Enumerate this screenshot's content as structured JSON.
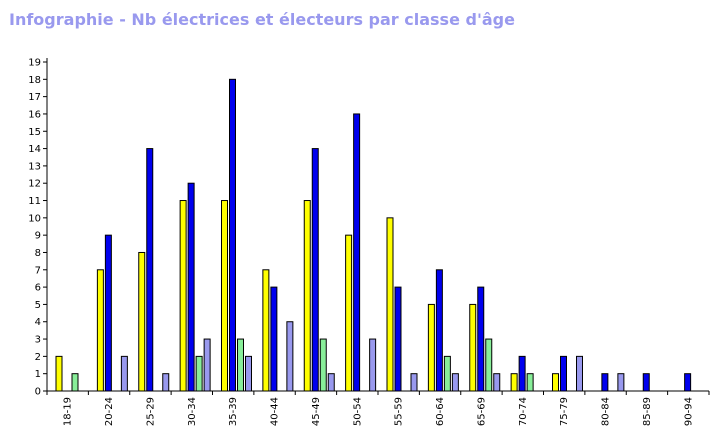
{
  "chart_data": {
    "type": "bar",
    "title": "Infographie - Nb électrices et électeurs par classe d'âge",
    "title_color": "#9999ee",
    "categories": [
      "18-19",
      "20-24",
      "25-29",
      "30-34",
      "35-39",
      "40-44",
      "45-49",
      "50-54",
      "55-59",
      "60-64",
      "65-69",
      "70-74",
      "75-79",
      "80-84",
      "85-89",
      "90-94"
    ],
    "series": [
      {
        "color": "#ffff00",
        "values": [
          2,
          7,
          8,
          11,
          11,
          7,
          11,
          9,
          10,
          5,
          5,
          1,
          1,
          0,
          0,
          0
        ]
      },
      {
        "color": "#0000ee",
        "values": [
          0,
          9,
          14,
          12,
          18,
          6,
          14,
          16,
          6,
          7,
          6,
          2,
          2,
          1,
          1,
          1
        ]
      },
      {
        "color": "#88ee99",
        "values": [
          1,
          0,
          0,
          2,
          3,
          0,
          3,
          0,
          0,
          2,
          3,
          1,
          0,
          0,
          0,
          0
        ]
      },
      {
        "color": "#9999ee",
        "values": [
          0,
          2,
          1,
          3,
          2,
          4,
          1,
          3,
          1,
          1,
          1,
          0,
          2,
          1,
          0,
          0
        ]
      }
    ],
    "ylim": [
      0,
      19
    ],
    "yticks": [
      0,
      1,
      2,
      3,
      4,
      5,
      6,
      7,
      8,
      9,
      10,
      11,
      12,
      13,
      14,
      15,
      16,
      17,
      18,
      19
    ],
    "xlabel": "",
    "ylabel": "",
    "grid": false,
    "legend": "none"
  }
}
